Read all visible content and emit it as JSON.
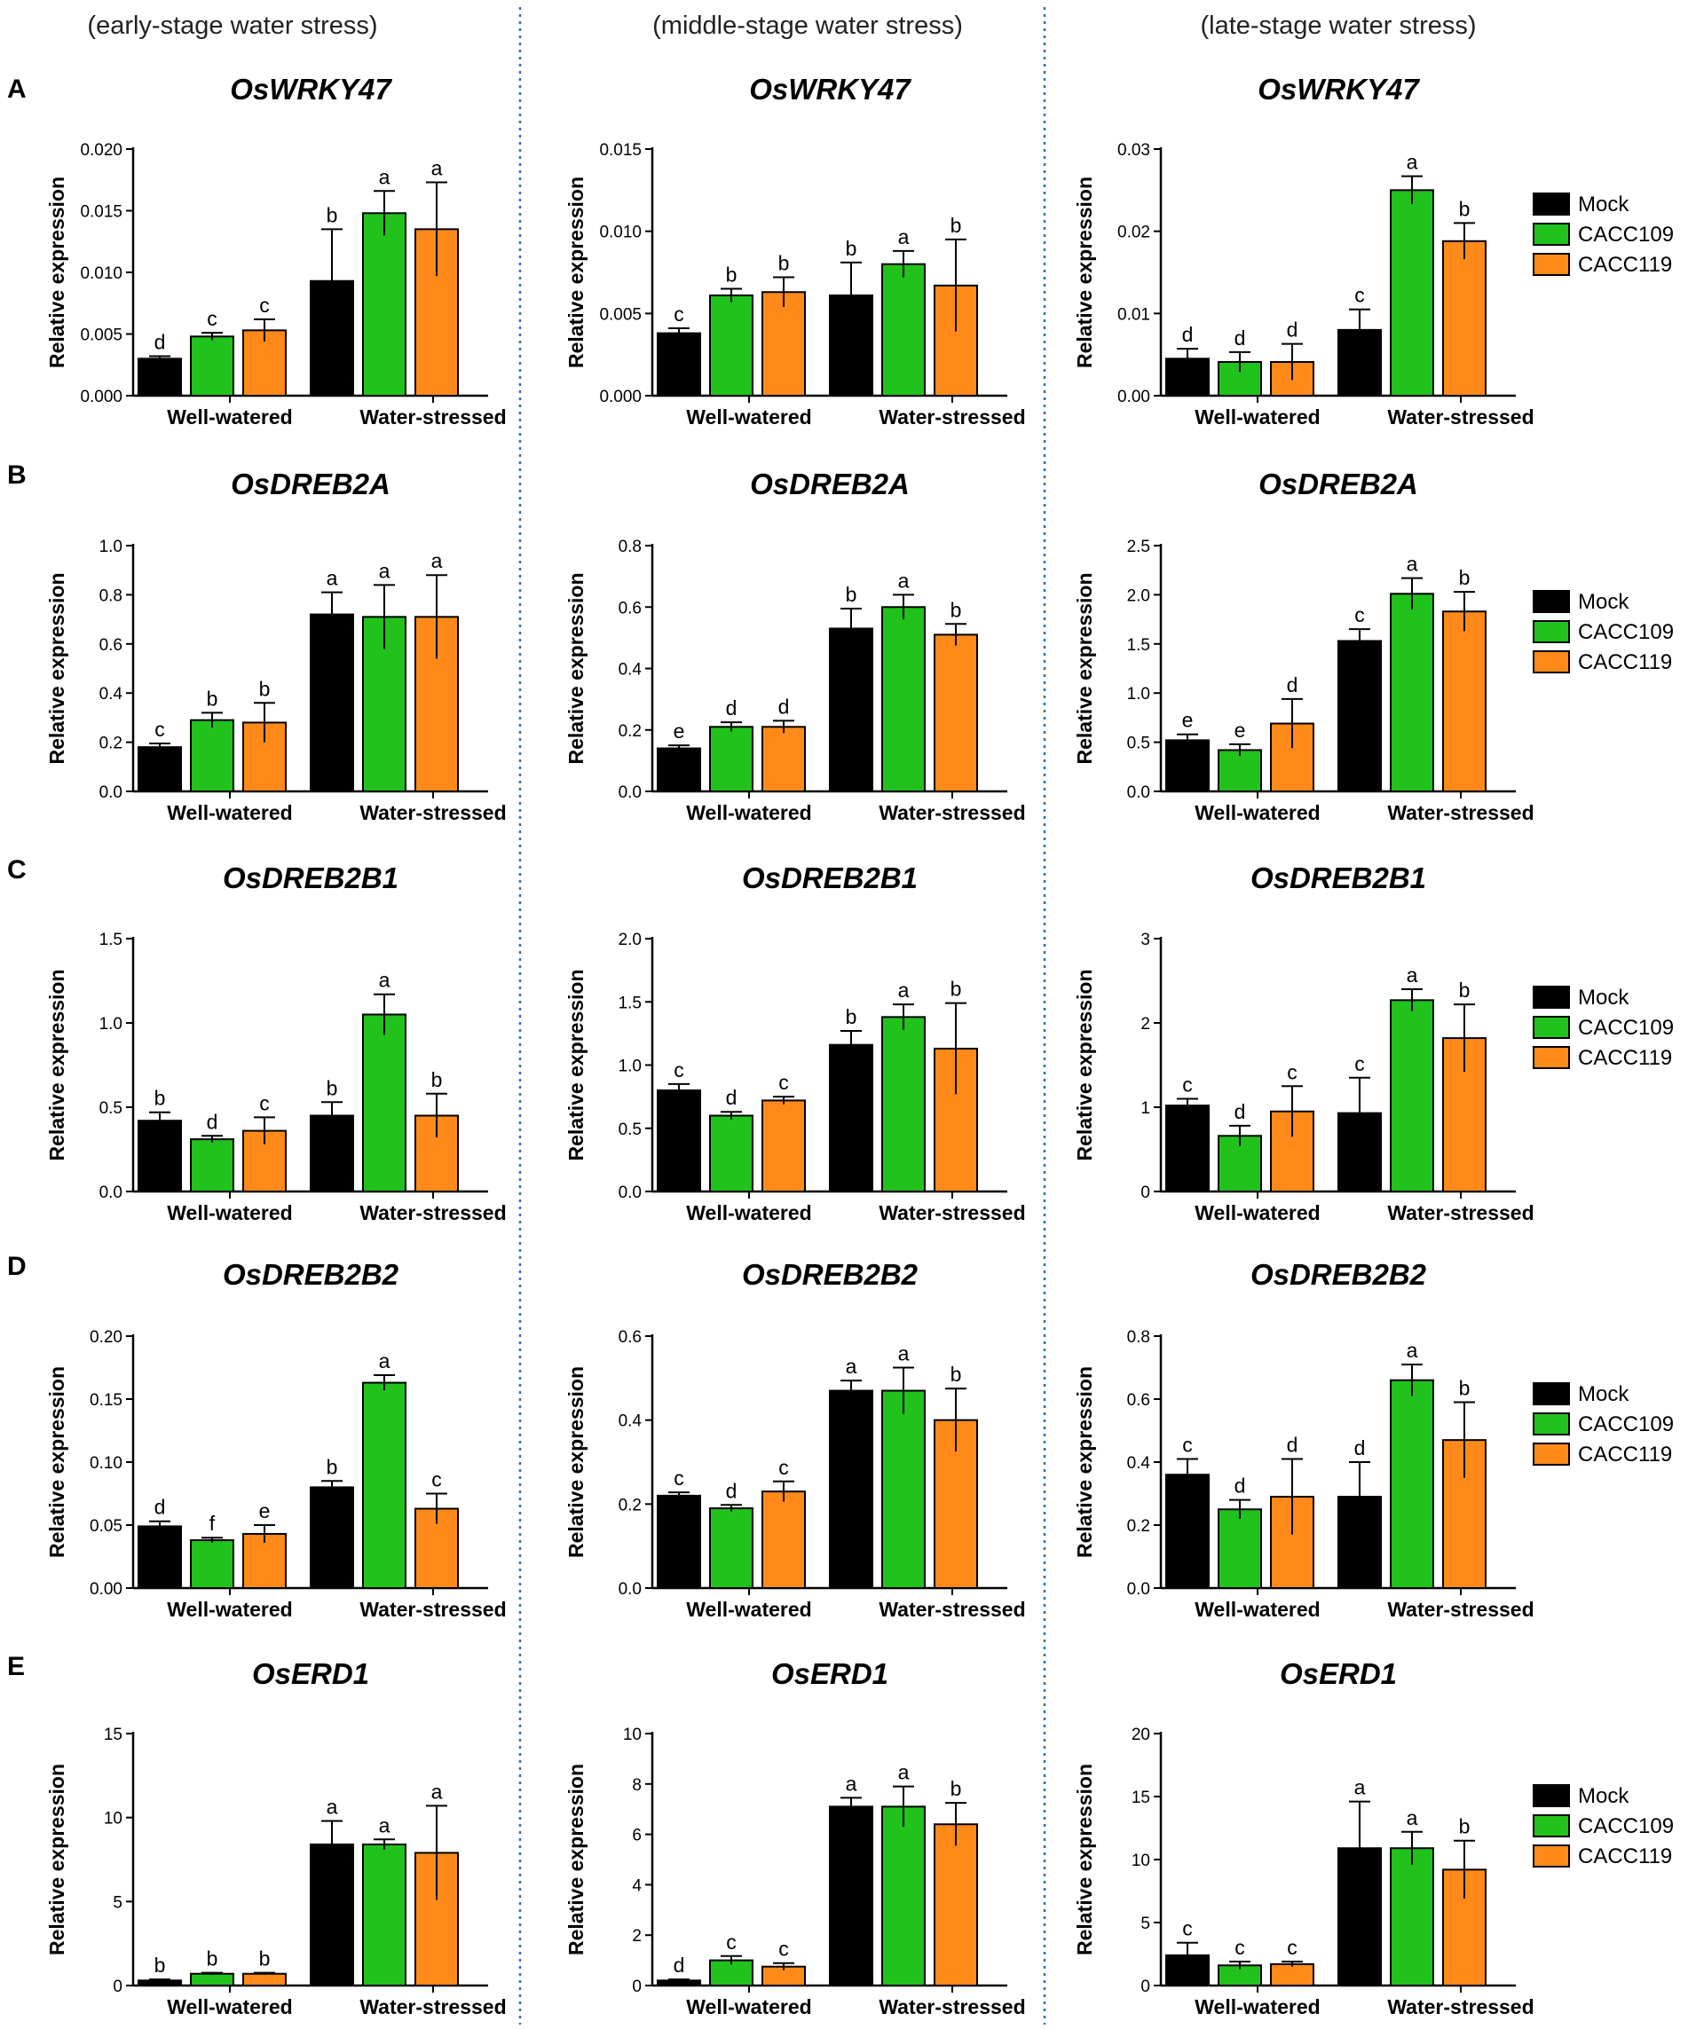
{
  "stages": [
    "(early-stage water stress)",
    "(middle-stage water stress)",
    "(late-stage water stress)"
  ],
  "row_labels": [
    "A",
    "B",
    "C",
    "D",
    "E"
  ],
  "legend": {
    "entries": [
      {
        "name": "Mock",
        "color": "#000000"
      },
      {
        "name": "CACC109",
        "color": "#21c21b"
      },
      {
        "name": "CACC119",
        "color": "#ff8a1a"
      }
    ]
  },
  "chart_data": [
    {
      "type": "bar",
      "title": "OsWRKY47",
      "stage": "(early-stage water stress)",
      "ylabel": "Relative expression",
      "categories": [
        "Well-watered",
        "Water-stressed"
      ],
      "ylim": [
        0,
        0.02
      ],
      "yticks": [
        "0.000",
        "0.005",
        "0.010",
        "0.015",
        "0.020"
      ],
      "series": [
        {
          "name": "Mock",
          "values": [
            0.003,
            0.0093
          ],
          "errors": [
            0.0002,
            0.0042
          ],
          "letters": [
            "d",
            "b"
          ]
        },
        {
          "name": "CACC109",
          "values": [
            0.0048,
            0.0148
          ],
          "errors": [
            0.0003,
            0.0018
          ],
          "letters": [
            "c",
            "a"
          ]
        },
        {
          "name": "CACC119",
          "values": [
            0.0053,
            0.0135
          ],
          "errors": [
            0.0009,
            0.0038
          ],
          "letters": [
            "c",
            "a"
          ]
        }
      ]
    },
    {
      "type": "bar",
      "title": "OsWRKY47",
      "stage": "(middle-stage water stress)",
      "ylabel": "Relative expression",
      "categories": [
        "Well-watered",
        "Water-stressed"
      ],
      "ylim": [
        0,
        0.015
      ],
      "yticks": [
        "0.000",
        "0.005",
        "0.010",
        "0.015"
      ],
      "series": [
        {
          "name": "Mock",
          "values": [
            0.0038,
            0.0061
          ],
          "errors": [
            0.0003,
            0.002
          ],
          "letters": [
            "c",
            "b"
          ]
        },
        {
          "name": "CACC109",
          "values": [
            0.0061,
            0.008
          ],
          "errors": [
            0.0004,
            0.0008
          ],
          "letters": [
            "b",
            "a"
          ]
        },
        {
          "name": "CACC119",
          "values": [
            0.0063,
            0.0067
          ],
          "errors": [
            0.0009,
            0.0028
          ],
          "letters": [
            "b",
            "b"
          ]
        }
      ]
    },
    {
      "type": "bar",
      "title": "OsWRKY47",
      "stage": "(late-stage water stress)",
      "ylabel": "Relative expression",
      "categories": [
        "Well-watered",
        "Water-stressed"
      ],
      "ylim": [
        0,
        0.03
      ],
      "yticks": [
        "0.00",
        "0.01",
        "0.02",
        "0.03"
      ],
      "series": [
        {
          "name": "Mock",
          "values": [
            0.0045,
            0.008
          ],
          "errors": [
            0.0012,
            0.0025
          ],
          "letters": [
            "d",
            "c"
          ]
        },
        {
          "name": "CACC109",
          "values": [
            0.0041,
            0.025
          ],
          "errors": [
            0.0012,
            0.0017
          ],
          "letters": [
            "d",
            "a"
          ]
        },
        {
          "name": "CACC119",
          "values": [
            0.0041,
            0.0188
          ],
          "errors": [
            0.0022,
            0.0022
          ],
          "letters": [
            "d",
            "b"
          ]
        }
      ]
    },
    {
      "type": "bar",
      "title": "OsDREB2A",
      "stage": "(early-stage water stress)",
      "ylabel": "Relative expression",
      "categories": [
        "Well-watered",
        "Water-stressed"
      ],
      "ylim": [
        0,
        1.0
      ],
      "yticks": [
        "0.0",
        "0.2",
        "0.4",
        "0.6",
        "0.8",
        "1.0"
      ],
      "series": [
        {
          "name": "Mock",
          "values": [
            0.18,
            0.72
          ],
          "errors": [
            0.015,
            0.09
          ],
          "letters": [
            "c",
            "a"
          ]
        },
        {
          "name": "CACC109",
          "values": [
            0.29,
            0.71
          ],
          "errors": [
            0.03,
            0.13
          ],
          "letters": [
            "b",
            "a"
          ]
        },
        {
          "name": "CACC119",
          "values": [
            0.28,
            0.71
          ],
          "errors": [
            0.08,
            0.17
          ],
          "letters": [
            "b",
            "a"
          ]
        }
      ]
    },
    {
      "type": "bar",
      "title": "OsDREB2A",
      "stage": "(middle-stage water stress)",
      "ylabel": "Relative expression",
      "categories": [
        "Well-watered",
        "Water-stressed"
      ],
      "ylim": [
        0,
        0.8
      ],
      "yticks": [
        "0.0",
        "0.2",
        "0.4",
        "0.6",
        "0.8"
      ],
      "series": [
        {
          "name": "Mock",
          "values": [
            0.14,
            0.53
          ],
          "errors": [
            0.01,
            0.065
          ],
          "letters": [
            "e",
            "b"
          ]
        },
        {
          "name": "CACC109",
          "values": [
            0.21,
            0.6
          ],
          "errors": [
            0.015,
            0.04
          ],
          "letters": [
            "d",
            "a"
          ]
        },
        {
          "name": "CACC119",
          "values": [
            0.21,
            0.51
          ],
          "errors": [
            0.02,
            0.035
          ],
          "letters": [
            "d",
            "b"
          ]
        }
      ]
    },
    {
      "type": "bar",
      "title": "OsDREB2A",
      "stage": "(late-stage water stress)",
      "ylabel": "Relative expression",
      "categories": [
        "Well-watered",
        "Water-stressed"
      ],
      "ylim": [
        0,
        2.5
      ],
      "yticks": [
        "0.0",
        "0.5",
        "1.0",
        "1.5",
        "2.0",
        "2.5"
      ],
      "series": [
        {
          "name": "Mock",
          "values": [
            0.52,
            1.53
          ],
          "errors": [
            0.06,
            0.12
          ],
          "letters": [
            "e",
            "c"
          ]
        },
        {
          "name": "CACC109",
          "values": [
            0.42,
            2.01
          ],
          "errors": [
            0.06,
            0.16
          ],
          "letters": [
            "e",
            "a"
          ]
        },
        {
          "name": "CACC119",
          "values": [
            0.69,
            1.83
          ],
          "errors": [
            0.25,
            0.2
          ],
          "letters": [
            "d",
            "b"
          ]
        }
      ]
    },
    {
      "type": "bar",
      "title": "OsDREB2B1",
      "stage": "(early-stage water stress)",
      "ylabel": "Relative expression",
      "categories": [
        "Well-watered",
        "Water-stressed"
      ],
      "ylim": [
        0,
        1.5
      ],
      "yticks": [
        "0.0",
        "0.5",
        "1.0",
        "1.5"
      ],
      "series": [
        {
          "name": "Mock",
          "values": [
            0.42,
            0.45
          ],
          "errors": [
            0.05,
            0.08
          ],
          "letters": [
            "b",
            "b"
          ]
        },
        {
          "name": "CACC109",
          "values": [
            0.31,
            1.05
          ],
          "errors": [
            0.02,
            0.12
          ],
          "letters": [
            "d",
            "a"
          ]
        },
        {
          "name": "CACC119",
          "values": [
            0.36,
            0.45
          ],
          "errors": [
            0.08,
            0.13
          ],
          "letters": [
            "c",
            "b"
          ]
        }
      ]
    },
    {
      "type": "bar",
      "title": "OsDREB2B1",
      "stage": "(middle-stage water stress)",
      "ylabel": "Relative expression",
      "categories": [
        "Well-watered",
        "Water-stressed"
      ],
      "ylim": [
        0,
        2.0
      ],
      "yticks": [
        "0.0",
        "0.5",
        "1.0",
        "1.5",
        "2.0"
      ],
      "series": [
        {
          "name": "Mock",
          "values": [
            0.8,
            1.16
          ],
          "errors": [
            0.05,
            0.11
          ],
          "letters": [
            "c",
            "b"
          ]
        },
        {
          "name": "CACC109",
          "values": [
            0.6,
            1.38
          ],
          "errors": [
            0.03,
            0.1
          ],
          "letters": [
            "d",
            "a"
          ]
        },
        {
          "name": "CACC119",
          "values": [
            0.72,
            1.13
          ],
          "errors": [
            0.03,
            0.36
          ],
          "letters": [
            "c",
            "b"
          ]
        }
      ]
    },
    {
      "type": "bar",
      "title": "OsDREB2B1",
      "stage": "(late-stage water stress)",
      "ylabel": "Relative expression",
      "categories": [
        "Well-watered",
        "Water-stressed"
      ],
      "ylim": [
        0,
        3
      ],
      "yticks": [
        "0",
        "1",
        "2",
        "3"
      ],
      "series": [
        {
          "name": "Mock",
          "values": [
            1.02,
            0.93
          ],
          "errors": [
            0.08,
            0.42
          ],
          "letters": [
            "c",
            "c"
          ]
        },
        {
          "name": "CACC109",
          "values": [
            0.66,
            2.27
          ],
          "errors": [
            0.12,
            0.13
          ],
          "letters": [
            "d",
            "a"
          ]
        },
        {
          "name": "CACC119",
          "values": [
            0.95,
            1.82
          ],
          "errors": [
            0.3,
            0.4
          ],
          "letters": [
            "c",
            "b"
          ]
        }
      ]
    },
    {
      "type": "bar",
      "title": "OsDREB2B2",
      "stage": "(early-stage water stress)",
      "ylabel": "Relative expression",
      "categories": [
        "Well-watered",
        "Water-stressed"
      ],
      "ylim": [
        0,
        0.2
      ],
      "yticks": [
        "0.00",
        "0.05",
        "0.10",
        "0.15",
        "0.20"
      ],
      "series": [
        {
          "name": "Mock",
          "values": [
            0.049,
            0.08
          ],
          "errors": [
            0.004,
            0.005
          ],
          "letters": [
            "d",
            "b"
          ]
        },
        {
          "name": "CACC109",
          "values": [
            0.038,
            0.163
          ],
          "errors": [
            0.002,
            0.006
          ],
          "letters": [
            "f",
            "a"
          ]
        },
        {
          "name": "CACC119",
          "values": [
            0.043,
            0.063
          ],
          "errors": [
            0.007,
            0.012
          ],
          "letters": [
            "e",
            "c"
          ]
        }
      ]
    },
    {
      "type": "bar",
      "title": "OsDREB2B2",
      "stage": "(middle-stage water stress)",
      "ylabel": "Relative expression",
      "categories": [
        "Well-watered",
        "Water-stressed"
      ],
      "ylim": [
        0,
        0.6
      ],
      "yticks": [
        "0.0",
        "0.2",
        "0.4",
        "0.6"
      ],
      "series": [
        {
          "name": "Mock",
          "values": [
            0.22,
            0.47
          ],
          "errors": [
            0.008,
            0.024
          ],
          "letters": [
            "c",
            "a"
          ]
        },
        {
          "name": "CACC109",
          "values": [
            0.19,
            0.47
          ],
          "errors": [
            0.008,
            0.055
          ],
          "letters": [
            "d",
            "a"
          ]
        },
        {
          "name": "CACC119",
          "values": [
            0.23,
            0.4
          ],
          "errors": [
            0.024,
            0.075
          ],
          "letters": [
            "c",
            "b"
          ]
        }
      ]
    },
    {
      "type": "bar",
      "title": "OsDREB2B2",
      "stage": "(late-stage water stress)",
      "ylabel": "Relative expression",
      "categories": [
        "Well-watered",
        "Water-stressed"
      ],
      "ylim": [
        0,
        0.8
      ],
      "yticks": [
        "0.0",
        "0.2",
        "0.4",
        "0.6",
        "0.8"
      ],
      "series": [
        {
          "name": "Mock",
          "values": [
            0.36,
            0.29
          ],
          "errors": [
            0.05,
            0.11
          ],
          "letters": [
            "c",
            "d"
          ]
        },
        {
          "name": "CACC109",
          "values": [
            0.25,
            0.66
          ],
          "errors": [
            0.03,
            0.05
          ],
          "letters": [
            "d",
            "a"
          ]
        },
        {
          "name": "CACC119",
          "values": [
            0.29,
            0.47
          ],
          "errors": [
            0.12,
            0.12
          ],
          "letters": [
            "d",
            "b"
          ]
        }
      ]
    },
    {
      "type": "bar",
      "title": "OsERD1",
      "stage": "(early-stage water stress)",
      "ylabel": "Relative expression",
      "categories": [
        "Well-watered",
        "Water-stressed"
      ],
      "ylim": [
        0,
        15
      ],
      "yticks": [
        "0",
        "5",
        "10",
        "15"
      ],
      "series": [
        {
          "name": "Mock",
          "values": [
            0.3,
            8.4
          ],
          "errors": [
            0.06,
            1.4
          ],
          "letters": [
            "b",
            "a"
          ]
        },
        {
          "name": "CACC109",
          "values": [
            0.7,
            8.4
          ],
          "errors": [
            0.06,
            0.3
          ],
          "letters": [
            "b",
            "a"
          ]
        },
        {
          "name": "CACC119",
          "values": [
            0.7,
            7.9
          ],
          "errors": [
            0.06,
            2.8
          ],
          "letters": [
            "b",
            "a"
          ]
        }
      ]
    },
    {
      "type": "bar",
      "title": "OsERD1",
      "stage": "(middle-stage water stress)",
      "ylabel": "Relative expression",
      "categories": [
        "Well-watered",
        "Water-stressed"
      ],
      "ylim": [
        0,
        10
      ],
      "yticks": [
        "0",
        "2",
        "4",
        "6",
        "8",
        "10"
      ],
      "series": [
        {
          "name": "Mock",
          "values": [
            0.2,
            7.1
          ],
          "errors": [
            0.04,
            0.35
          ],
          "letters": [
            "d",
            "a"
          ]
        },
        {
          "name": "CACC109",
          "values": [
            1.0,
            7.1
          ],
          "errors": [
            0.17,
            0.8
          ],
          "letters": [
            "c",
            "a"
          ]
        },
        {
          "name": "CACC119",
          "values": [
            0.75,
            6.4
          ],
          "errors": [
            0.14,
            0.85
          ],
          "letters": [
            "c",
            "b"
          ]
        }
      ]
    },
    {
      "type": "bar",
      "title": "OsERD1",
      "stage": "(late-stage water stress)",
      "ylabel": "Relative expression",
      "categories": [
        "Well-watered",
        "Water-stressed"
      ],
      "ylim": [
        0,
        20
      ],
      "yticks": [
        "0",
        "5",
        "10",
        "15",
        "20"
      ],
      "series": [
        {
          "name": "Mock",
          "values": [
            2.4,
            10.9
          ],
          "errors": [
            1.0,
            3.7
          ],
          "letters": [
            "c",
            "a"
          ]
        },
        {
          "name": "CACC109",
          "values": [
            1.6,
            10.9
          ],
          "errors": [
            0.3,
            1.3
          ],
          "letters": [
            "c",
            "a"
          ]
        },
        {
          "name": "CACC119",
          "values": [
            1.7,
            9.2
          ],
          "errors": [
            0.2,
            2.3
          ],
          "letters": [
            "c",
            "b"
          ]
        }
      ]
    }
  ]
}
